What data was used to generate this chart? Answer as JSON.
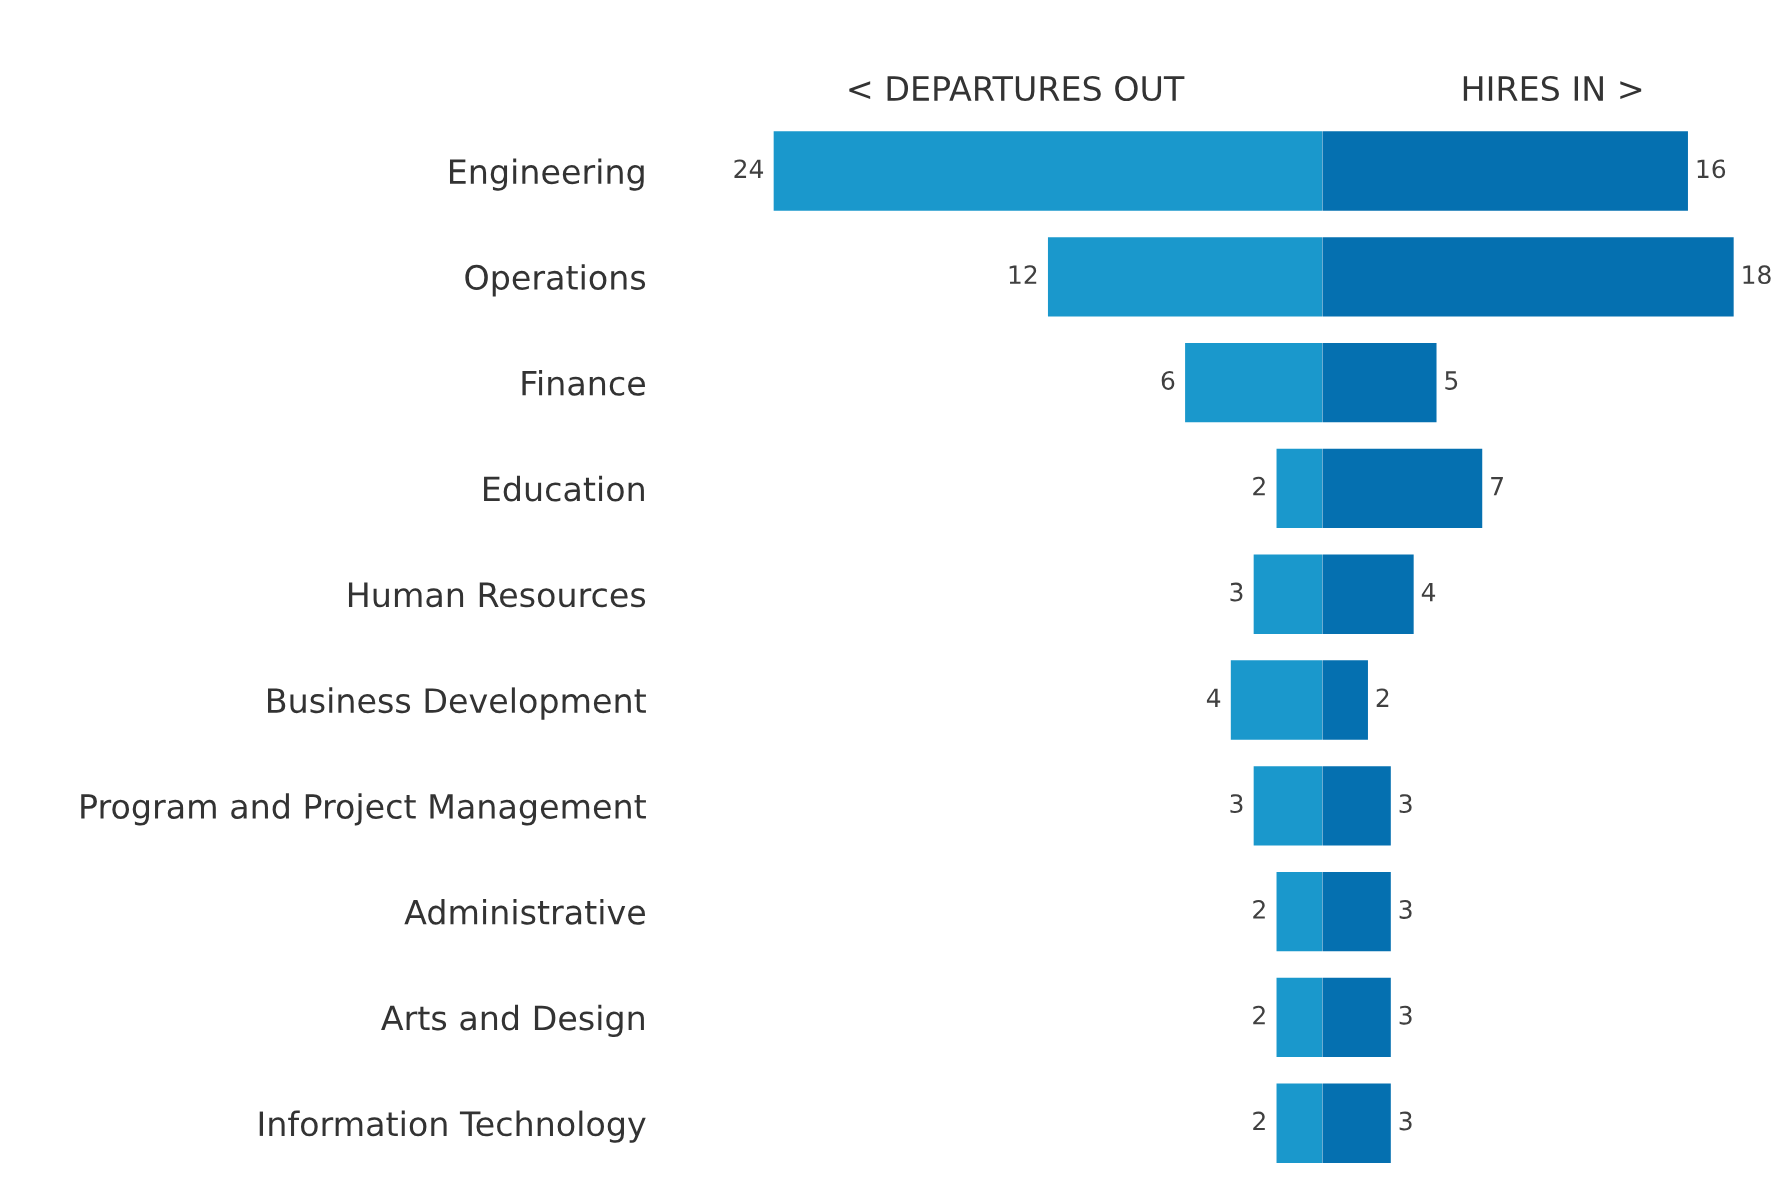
{
  "chart_data": [
    {
      "type": "bar",
      "orientation": "horizontal",
      "categories": [
        "Engineering",
        "Operations",
        "Finance",
        "Education",
        "Human Resources",
        "Business Development",
        "Program and Project Management",
        "Administrative",
        "Arts and Design",
        "Information Technology"
      ],
      "series": [
        {
          "name": "< DEPARTURES OUT",
          "color": "#1a98cc",
          "values": [
            24,
            12,
            6,
            2,
            3,
            4,
            3,
            2,
            2,
            2
          ]
        }
      ],
      "data_labels": true,
      "tick_labels": "y",
      "legend": false
    },
    {
      "type": "bar",
      "orientation": "horizontal",
      "categories": [
        null,
        null,
        null,
        null,
        null,
        null,
        null,
        null,
        null,
        null
      ],
      "series": [
        {
          "name": "HIRES IN >",
          "color": "#0570b0",
          "values": [
            16,
            18,
            5,
            7,
            4,
            2,
            3,
            3,
            3,
            3
          ]
        }
      ],
      "data_labels": true,
      "tick_labels": false,
      "legend": false
    }
  ]
}
